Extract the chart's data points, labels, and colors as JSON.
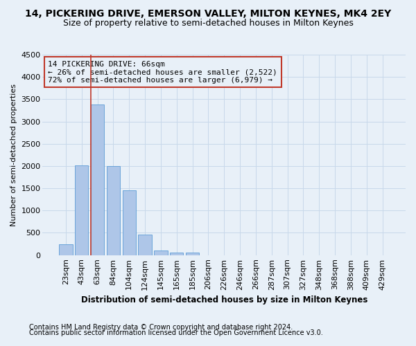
{
  "title": "14, PICKERING DRIVE, EMERSON VALLEY, MILTON KEYNES, MK4 2EY",
  "subtitle": "Size of property relative to semi-detached houses in Milton Keynes",
  "xlabel": "Distribution of semi-detached houses by size in Milton Keynes",
  "ylabel": "Number of semi-detached properties",
  "footer1": "Contains HM Land Registry data © Crown copyright and database right 2024.",
  "footer2": "Contains public sector information licensed under the Open Government Licence v3.0.",
  "categories": [
    "23sqm",
    "43sqm",
    "63sqm",
    "84sqm",
    "104sqm",
    "124sqm",
    "145sqm",
    "165sqm",
    "185sqm",
    "206sqm",
    "226sqm",
    "246sqm",
    "266sqm",
    "287sqm",
    "307sqm",
    "327sqm",
    "348sqm",
    "368sqm",
    "388sqm",
    "409sqm",
    "429sqm"
  ],
  "values": [
    250,
    2020,
    3380,
    2000,
    1450,
    460,
    100,
    60,
    50,
    0,
    0,
    0,
    0,
    0,
    0,
    0,
    0,
    0,
    0,
    0,
    0
  ],
  "bar_color": "#aec6e8",
  "bar_edge_color": "#5b9bd5",
  "grid_color": "#c8d8ea",
  "bg_color": "#e8f0f8",
  "vline_color": "#c0392b",
  "annotation_text": "14 PICKERING DRIVE: 66sqm\n← 26% of semi-detached houses are smaller (2,522)\n72% of semi-detached houses are larger (6,979) →",
  "annotation_box_color": "#c0392b",
  "ylim": [
    0,
    4500
  ],
  "yticks": [
    0,
    500,
    1000,
    1500,
    2000,
    2500,
    3000,
    3500,
    4000,
    4500
  ],
  "title_fontsize": 10,
  "subtitle_fontsize": 9,
  "annotation_fontsize": 8,
  "tick_fontsize": 8,
  "xlabel_fontsize": 8.5,
  "ylabel_fontsize": 8,
  "footer_fontsize": 7
}
